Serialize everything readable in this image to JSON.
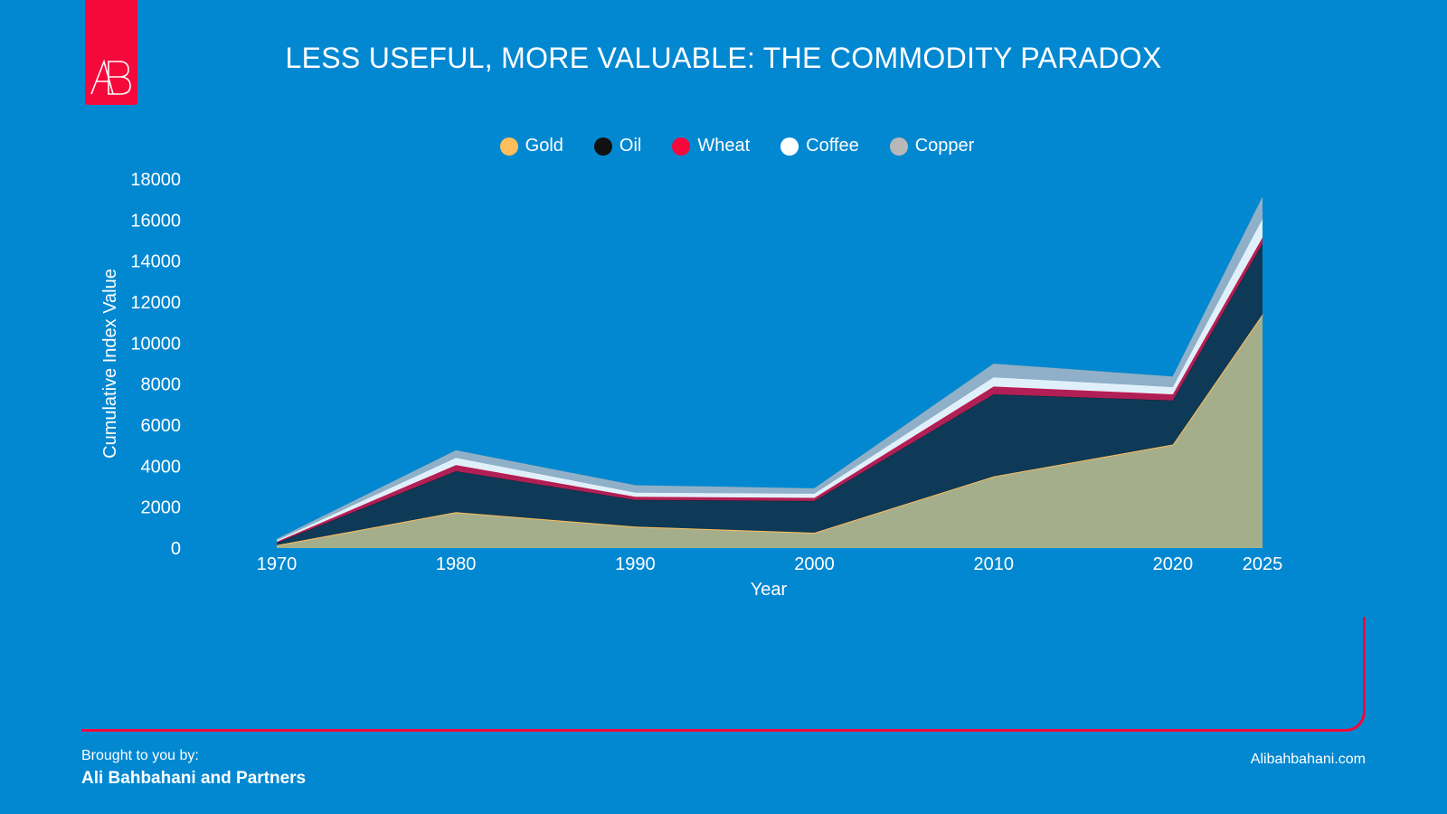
{
  "brand": {
    "logo_text": "AB",
    "accent": "#f5083b",
    "background": "#0288d1"
  },
  "chart_data": {
    "type": "area",
    "stacked": true,
    "title": "LESS USEFUL, MORE VALUABLE: THE COMMODITY PARADOX",
    "xlabel": "Year",
    "ylabel": "Cumulative Index Value",
    "x": [
      "1970",
      "1980",
      "1990",
      "2000",
      "2010",
      "2020",
      "2025"
    ],
    "ylim": [
      0,
      18000
    ],
    "yticks": [
      "0",
      "2000",
      "4000",
      "6000",
      "8000",
      "10000",
      "12000",
      "14000",
      "16000",
      "18000"
    ],
    "legend_position": "top-center",
    "grid": false,
    "series": [
      {
        "name": "Gold",
        "color": "#ffbe5c",
        "fill": "#a5ae8a",
        "values": [
          140,
          1750,
          1050,
          750,
          3500,
          5050,
          11400
        ]
      },
      {
        "name": "Oil",
        "color": "#111111",
        "fill": "#0e3a57",
        "values": [
          120,
          2000,
          1300,
          1550,
          4000,
          2150,
          3450
        ]
      },
      {
        "name": "Wheat",
        "color": "#f5083b",
        "fill": "#b01f55",
        "values": [
          50,
          300,
          150,
          150,
          380,
          300,
          300
        ]
      },
      {
        "name": "Coffee",
        "color": "#ffffff",
        "fill": "#e0f0fb",
        "values": [
          60,
          350,
          200,
          200,
          450,
          350,
          900
        ]
      },
      {
        "name": "Copper",
        "color": "#b8b8b8",
        "fill": "#8fb0c8",
        "values": [
          60,
          350,
          350,
          250,
          650,
          500,
          1050
        ]
      }
    ]
  },
  "footer": {
    "brought_label": "Brought to you by:",
    "partners": "Ali Bahbahani and Partners",
    "website": "Alibahbahani.com"
  }
}
